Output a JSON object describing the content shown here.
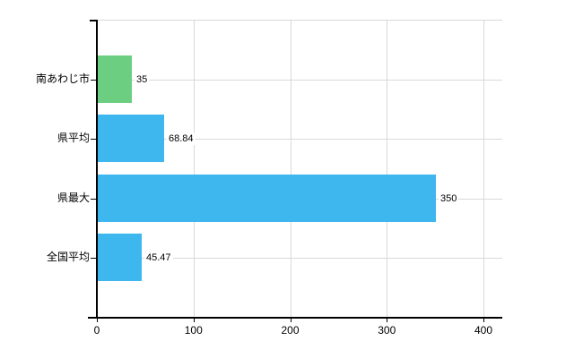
{
  "chart": {
    "background": "#ffffff"
  },
  "chart_data": {
    "type": "bar",
    "orientation": "horizontal",
    "title": "",
    "xlabel": "",
    "ylabel": "",
    "categories": [
      "南あわじ市",
      "県平均",
      "県最大",
      "全国平均"
    ],
    "values": [
      35,
      68.84,
      350,
      45.47
    ],
    "value_labels": [
      "35",
      "68.84",
      "350",
      "45.47"
    ],
    "bar_colors": [
      "#6cce80",
      "#3eb7ef",
      "#3eb7ef",
      "#3eb7ef"
    ],
    "xlim": [
      0,
      400
    ],
    "xticks": [
      0,
      100,
      200,
      300,
      400
    ],
    "xtick_labels": [
      "0",
      "100",
      "200",
      "300",
      "400"
    ],
    "grid": true,
    "legend": false,
    "colors": {
      "axis": "#000000",
      "gridline": "#d9d9d9",
      "label_text": "#000000",
      "green_bar": "#6cce80",
      "blue_bar": "#3eb7ef"
    }
  }
}
